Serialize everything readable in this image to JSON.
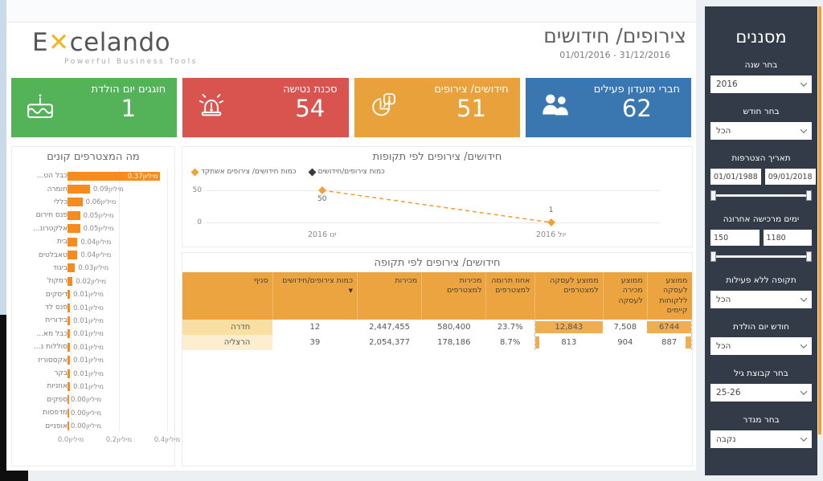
{
  "logo": {
    "prefix": "E",
    "x": "✕",
    "suffix": "celando",
    "tagline": "Powerful Business Tools"
  },
  "header": {
    "title": "צירופים/ חידושים",
    "date_range": "01/01/2016 - 31/12/2016"
  },
  "kpis": [
    {
      "name": "birthdays",
      "label": "חוגגים יום הולדת",
      "value": "1",
      "color": "#54B358",
      "icon": "cake-icon"
    },
    {
      "name": "churn-risk",
      "label": "סכנת נטישה",
      "value": "54",
      "color": "#D9534F",
      "icon": "siren-icon"
    },
    {
      "name": "renewals-joins",
      "label": "חידושים/ צירופים",
      "value": "51",
      "color": "#E9A23B",
      "icon": "pie-alert-icon"
    },
    {
      "name": "active-members",
      "label": "חברי מועדון פעילים",
      "value": "62",
      "color": "#3A76AF",
      "icon": "people-icon"
    }
  ],
  "filters": {
    "title": "מסננים",
    "year": {
      "label": "בחר שנה",
      "value": "2016"
    },
    "month": {
      "label": "בחר חודש",
      "value": "הכל"
    },
    "join_date": {
      "label": "תאריך הצטרפות",
      "from": "01/01/1988",
      "to": "09/01/2018"
    },
    "days_last_buy": {
      "label": "ימים מרכישה אחרונה",
      "from": "150",
      "to": "1180"
    },
    "inactive_period": {
      "label": "תקופה ללא פעילות",
      "value": "הכל"
    },
    "birthday_month": {
      "label": "חודש יום הולדת",
      "value": "הכל"
    },
    "age_group": {
      "label": "בחר קבוצת גיל",
      "value": "25-26"
    },
    "gender": {
      "label": "בחר מגדר",
      "value": "נקבה"
    }
  },
  "chart_data": [
    {
      "type": "bar",
      "title": "מה המצטרפים קונים",
      "orientation": "horizontal",
      "unit": "מיליון",
      "xlim": [
        0,
        0.4
      ],
      "x_ticks": [
        "0.0",
        "0.2",
        "0.4"
      ],
      "bar_color": "#F68B1E",
      "categories": [
        "כבל הט...",
        "חומרה",
        "כללי",
        "פנס חירום",
        "אלקטרונ...",
        "בית",
        "טאבלטים",
        "ביגוד",
        "רמקול",
        "דיסקים",
        "פנס לד",
        "בידורית",
        "כבל מא...",
        "סוללות נ...",
        "אקססוריז",
        "בקר",
        "אוזניות",
        "ספקים",
        "מדפסות",
        "אופניים"
      ],
      "values": [
        0.37,
        0.09,
        0.06,
        0.05,
        0.05,
        0.04,
        0.04,
        0.03,
        0.02,
        0.01,
        0.01,
        0.01,
        0.01,
        0.01,
        0.01,
        0.01,
        0.01,
        0.0,
        0.0,
        0.0
      ]
    },
    {
      "type": "line",
      "title": "חידושים/ צירופים לפי תקופות",
      "legend": [
        {
          "label": "כמות חידושים/ צירופים אשתקד",
          "color": "#F2A03C"
        },
        {
          "label": "כמות צירופים/חידושים",
          "color": "#3A3A3A"
        }
      ],
      "x": [
        "ינו 2016",
        "יול 2016"
      ],
      "series": [
        {
          "name": "כמות צירופים/חידושים",
          "values": [
            50,
            1
          ]
        }
      ],
      "point_labels": [
        "50",
        "1"
      ],
      "ylim": [
        0,
        50
      ],
      "y_ticks": [
        "50",
        "0"
      ],
      "line_style": "dashed",
      "line_color": "#F2A03C"
    },
    {
      "type": "table",
      "title": "חידושים/ צירופים לפי תקופה",
      "columns": [
        "סניף",
        "כמות צירופים/חידושים",
        "מכירות",
        "מכירות למצטרפים",
        "אחוז תרומה למצטרפים",
        "ממוצע לעסקה למצטרפים",
        "ממוצע מכירה לעסקה",
        "ממוצע לעסקה ללקוחות קיימים"
      ],
      "sort_column": 1,
      "rows": [
        [
          "חדרה",
          "12",
          "2,447,455",
          "580,400",
          "23.7%",
          "12,843",
          "7,508",
          "6744"
        ],
        [
          "הרצליה",
          "39",
          "2,054,377",
          "178,186",
          "8.7%",
          "813",
          "904",
          "887"
        ]
      ],
      "row_header_colors": [
        "#FADFA3",
        "#FCEECF"
      ],
      "data_bar_columns": [
        {
          "index": 5,
          "max": 12843,
          "align": "left",
          "color": "#EFAE53"
        },
        {
          "index": 7,
          "max": 6744,
          "align": "right",
          "color": "#EFAE53"
        }
      ]
    }
  ]
}
